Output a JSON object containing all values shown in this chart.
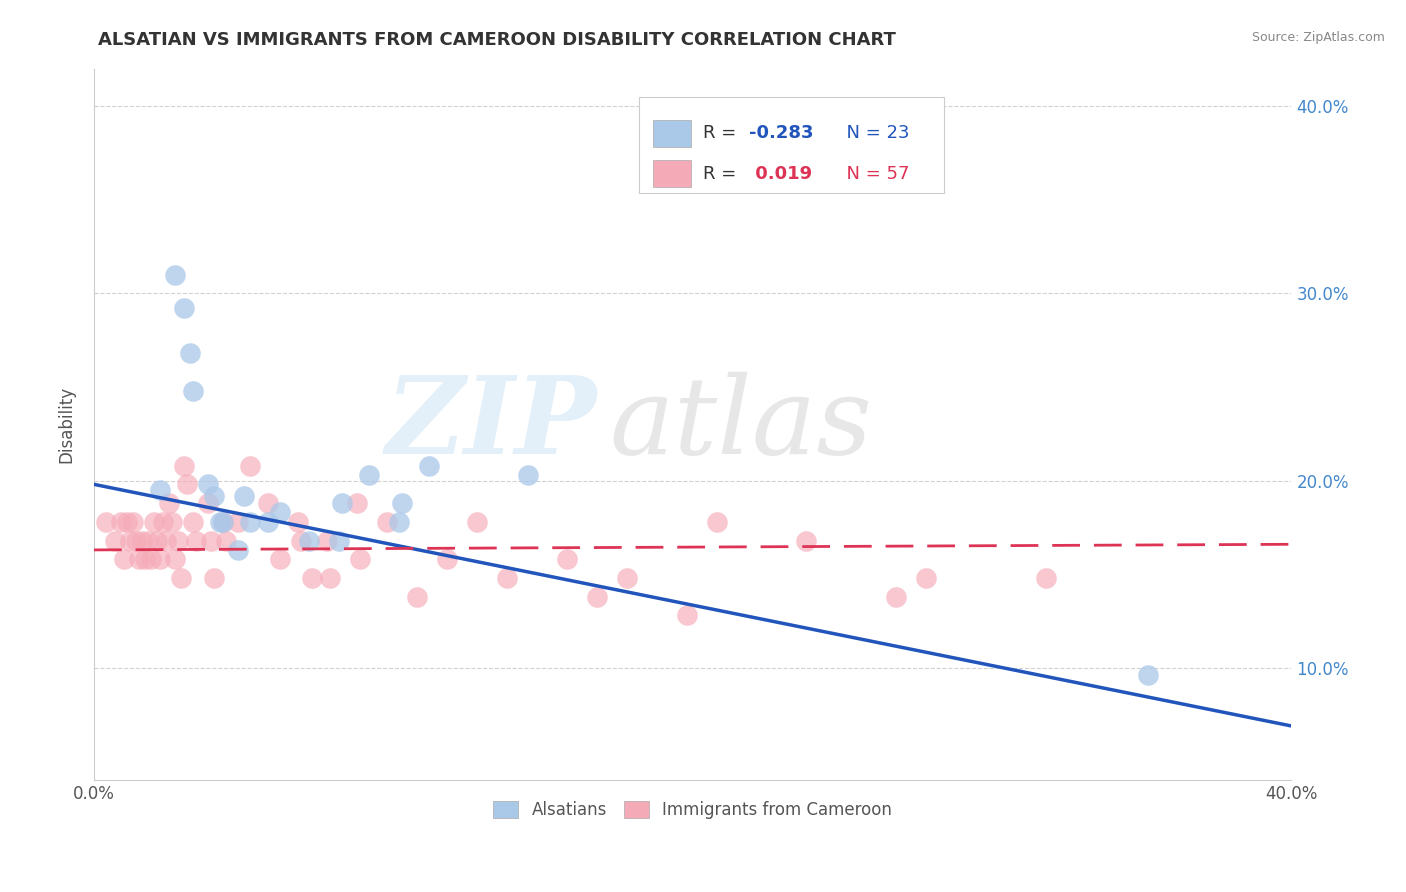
{
  "title": "ALSATIAN VS IMMIGRANTS FROM CAMEROON DISABILITY CORRELATION CHART",
  "source": "Source: ZipAtlas.com",
  "ylabel": "Disability",
  "xlabel": "",
  "xlim": [
    0.0,
    0.4
  ],
  "ylim": [
    0.04,
    0.42
  ],
  "yticks": [
    0.1,
    0.2,
    0.3,
    0.4
  ],
  "ytick_labels": [
    "10.0%",
    "20.0%",
    "30.0%",
    "40.0%"
  ],
  "xticks": [
    0.0,
    0.05,
    0.1,
    0.15,
    0.2,
    0.25,
    0.3,
    0.35,
    0.4
  ],
  "xtick_labels": [
    "0.0%",
    "",
    "",
    "",
    "",
    "",
    "",
    "",
    "40.0%"
  ],
  "blue_R": -0.283,
  "blue_N": 23,
  "pink_R": 0.019,
  "pink_N": 57,
  "blue_color": "#aac8e8",
  "pink_color": "#f5aab8",
  "blue_line_color": "#2255bb",
  "pink_line_color": "#dd3355",
  "grid_color": "#cccccc",
  "blue_scatter_x": [
    0.022,
    0.027,
    0.03,
    0.032,
    0.033,
    0.038,
    0.04,
    0.042,
    0.043,
    0.048,
    0.05,
    0.052,
    0.058,
    0.062,
    0.072,
    0.082,
    0.083,
    0.092,
    0.102,
    0.103,
    0.112,
    0.145,
    0.352
  ],
  "blue_scatter_y": [
    0.195,
    0.31,
    0.292,
    0.268,
    0.248,
    0.198,
    0.192,
    0.178,
    0.178,
    0.163,
    0.192,
    0.178,
    0.178,
    0.183,
    0.168,
    0.168,
    0.188,
    0.203,
    0.178,
    0.188,
    0.208,
    0.203,
    0.096
  ],
  "pink_scatter_x": [
    0.004,
    0.007,
    0.009,
    0.01,
    0.011,
    0.012,
    0.013,
    0.014,
    0.015,
    0.016,
    0.017,
    0.018,
    0.019,
    0.02,
    0.021,
    0.022,
    0.023,
    0.024,
    0.025,
    0.026,
    0.027,
    0.028,
    0.029,
    0.03,
    0.031,
    0.033,
    0.034,
    0.038,
    0.039,
    0.04,
    0.043,
    0.044,
    0.048,
    0.052,
    0.058,
    0.062,
    0.068,
    0.069,
    0.073,
    0.078,
    0.079,
    0.088,
    0.089,
    0.098,
    0.108,
    0.118,
    0.128,
    0.138,
    0.158,
    0.168,
    0.178,
    0.198,
    0.208,
    0.238,
    0.268,
    0.278,
    0.318
  ],
  "pink_scatter_y": [
    0.178,
    0.168,
    0.178,
    0.158,
    0.178,
    0.168,
    0.178,
    0.168,
    0.158,
    0.168,
    0.158,
    0.168,
    0.158,
    0.178,
    0.168,
    0.158,
    0.178,
    0.168,
    0.188,
    0.178,
    0.158,
    0.168,
    0.148,
    0.208,
    0.198,
    0.178,
    0.168,
    0.188,
    0.168,
    0.148,
    0.178,
    0.168,
    0.178,
    0.208,
    0.188,
    0.158,
    0.178,
    0.168,
    0.148,
    0.168,
    0.148,
    0.188,
    0.158,
    0.178,
    0.138,
    0.158,
    0.178,
    0.148,
    0.158,
    0.138,
    0.148,
    0.128,
    0.178,
    0.168,
    0.138,
    0.148,
    0.148
  ],
  "blue_line_x": [
    0.0,
    0.4
  ],
  "blue_line_y": [
    0.198,
    0.069
  ],
  "pink_line_x": [
    0.0,
    0.4
  ],
  "pink_line_y": [
    0.163,
    0.166
  ]
}
